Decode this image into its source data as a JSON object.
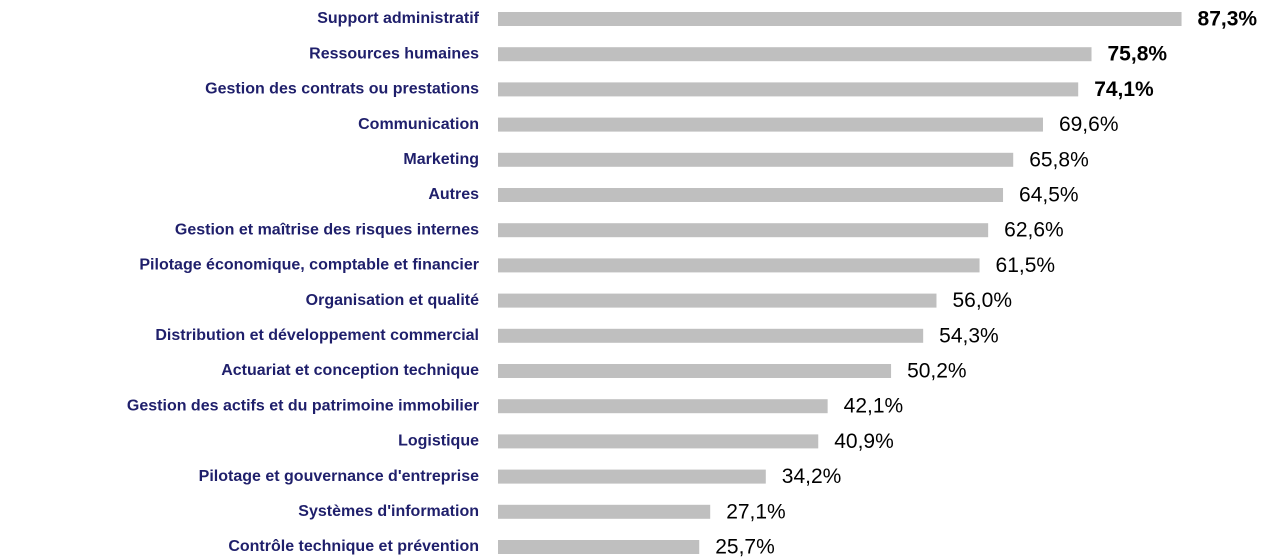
{
  "chart_data": {
    "type": "bar",
    "orientation": "horizontal",
    "categories": [
      "Support administratif",
      "Ressources humaines",
      "Gestion des contrats ou prestations",
      "Communication",
      "Marketing",
      "Autres",
      "Gestion et maîtrise des risques internes",
      "Pilotage économique, comptable et financier",
      "Organisation et qualité",
      "Distribution et développement commercial",
      "Actuariat et conception technique",
      "Gestion des actifs et du patrimoine immobilier",
      "Logistique",
      "Pilotage et gouvernance d'entreprise",
      "Systèmes d'information",
      "Contrôle technique et prévention"
    ],
    "values": [
      87.3,
      75.8,
      74.1,
      69.6,
      65.8,
      64.5,
      62.6,
      61.5,
      56.0,
      54.3,
      50.2,
      42.1,
      40.9,
      34.2,
      27.1,
      25.7
    ],
    "value_labels": [
      "87,3%",
      "75,8%",
      "74,1%",
      "69,6%",
      "65,8%",
      "64,5%",
      "62,6%",
      "61,5%",
      "56,0%",
      "54,3%",
      "50,2%",
      "42,1%",
      "40,9%",
      "34,2%",
      "27,1%",
      "25,7%"
    ],
    "highlighted": [
      0,
      1,
      2
    ],
    "color": "#bfbfbf",
    "label_color": "#1f1f6b"
  }
}
